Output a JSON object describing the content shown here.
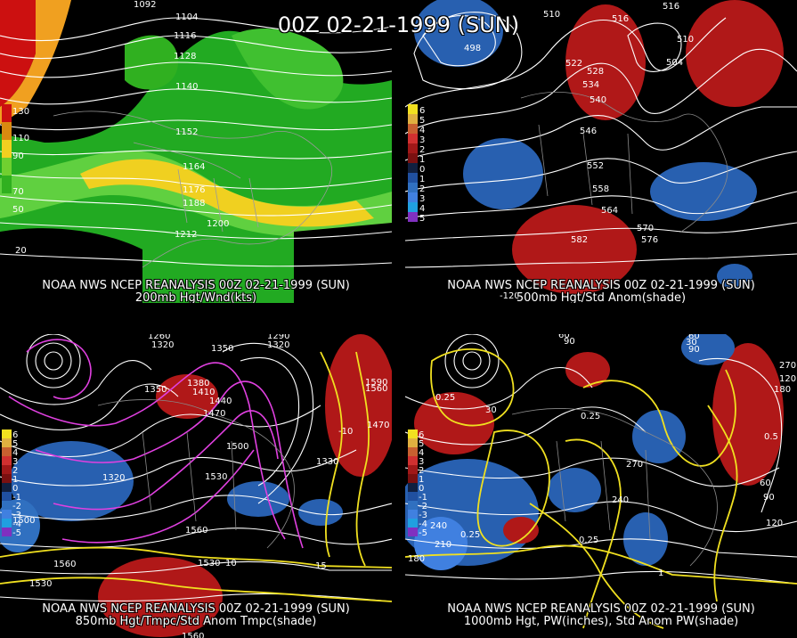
{
  "header": {
    "title": "00Z 02-21-1999 (SUN)"
  },
  "panels": [
    {
      "id": "tl",
      "line1": "NOAA NWS NCEP REANALYSIS 00Z 02-21-1999 (SUN)",
      "line2": "200mb Hgt/Wnd(kts)",
      "legend_labels": [
        "130",
        "110",
        "90",
        "70",
        "50"
      ],
      "legend_colors": [
        "#cc1010",
        "#d98a10",
        "#f2d020",
        "#70d030",
        "#30b020"
      ],
      "contour_labels": [
        "1092",
        "1104",
        "1116",
        "1128",
        "1140",
        "1152",
        "1164",
        "1176",
        "1188",
        "1200",
        "1212",
        "20"
      ]
    },
    {
      "id": "tr",
      "line1": "NOAA NWS NCEP REANALYSIS 00Z 02-21-1999 (SUN)",
      "line2": "500mb Hgt/Std Anom(shade)",
      "legend_labels": [
        "6",
        "5",
        "4",
        "3",
        "2",
        "1",
        "0",
        "1",
        "2",
        "3",
        "4",
        "5"
      ],
      "legend_colors": [
        "#f2e020",
        "#e0b040",
        "#c86030",
        "#d03030",
        "#a01818",
        "#7a1010",
        "#102040",
        "#2050a0",
        "#3070c0",
        "#4080e0",
        "#20a0e0",
        "#8030c0"
      ],
      "contour_labels": [
        "510",
        "516",
        "516",
        "510",
        "498",
        "522",
        "504",
        "528",
        "534",
        "540",
        "546",
        "552",
        "558",
        "564",
        "570",
        "576",
        "582",
        "-120"
      ]
    },
    {
      "id": "bl",
      "line1": "NOAA NWS NCEP REANALYSIS 00Z 02-21-1999 (SUN)",
      "line2": "850mb Hgt/Tmpc/Std Anom Tmpc(shade)",
      "legend_labels": [
        "6",
        "5",
        "4",
        "3",
        "2",
        "1",
        "0",
        "-1",
        "-2",
        "-3",
        "-4",
        "-5"
      ],
      "legend_colors": [
        "#f2e020",
        "#e0b040",
        "#c86030",
        "#d03030",
        "#a01818",
        "#7a1010",
        "#102040",
        "#2050a0",
        "#3070c0",
        "#4080e0",
        "#20a0e0",
        "#8030c0"
      ],
      "contour_labels": [
        "1260",
        "1320",
        "1290",
        "1320",
        "1350",
        "1380",
        "1410",
        "1440",
        "1470",
        "1350",
        "1500",
        "1530",
        "1560",
        "1590",
        "1560",
        "1470",
        "1320",
        "1500",
        "1560",
        "1530",
        "1530",
        "1560",
        "1330",
        "10",
        "15",
        "-10"
      ]
    },
    {
      "id": "br",
      "line1": "NOAA NWS NCEP REANALYSIS 00Z 02-21-1999 (SUN)",
      "line2": "1000mb Hgt, PW(inches), Std Anom PW(shade)",
      "legend_labels": [
        "6",
        "5",
        "4",
        "3",
        "2",
        "1",
        "0",
        "-1",
        "-2",
        "-3",
        "-4",
        "-5"
      ],
      "legend_colors": [
        "#f2e020",
        "#e0b040",
        "#c86030",
        "#d03030",
        "#a01818",
        "#7a1010",
        "#102040",
        "#2050a0",
        "#3070c0",
        "#4080e0",
        "#20a0e0",
        "#8030c0"
      ],
      "contour_labels": [
        "60",
        "90",
        "30",
        "60",
        "90",
        "270",
        "180",
        "120",
        "0.25",
        "0.25",
        "0.5",
        "30",
        "240",
        "210",
        "180",
        "0.25",
        "0.25",
        "270",
        "240",
        "1",
        "60",
        "90",
        "120"
      ]
    }
  ],
  "colors": {
    "contour_white": "#ffffff",
    "contour_magenta": "#e040e0",
    "contour_yellow": "#f0e020",
    "anom_red": "#b01818",
    "anom_blue": "#2860b0",
    "map_gray": "#888888"
  }
}
